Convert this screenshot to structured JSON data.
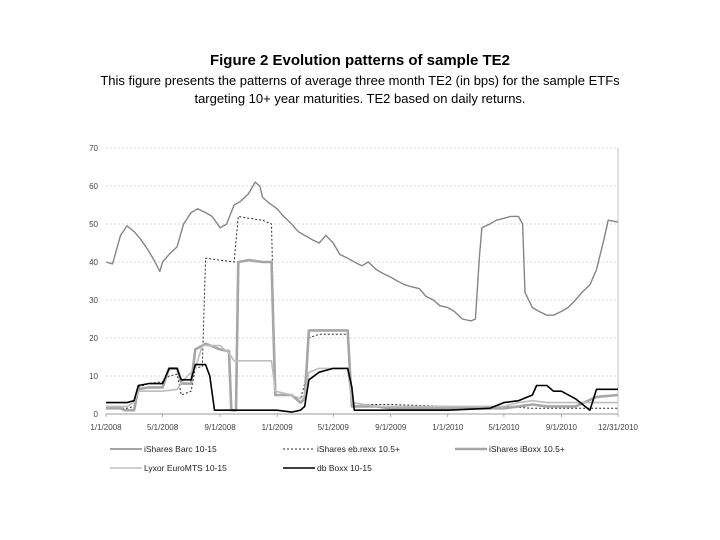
{
  "title": "Figure 2 Evolution patterns of sample TE2",
  "subtitle_line1": "This figure presents the patterns of average three month TE2 (in bps) for the sample ETFs",
  "subtitle_line2": "targeting 10+ year maturities. TE2 based on daily returns.",
  "colors": {
    "ishares_barc": "#858585",
    "ishares_eb": "#2a2a2a",
    "ishares_iboxx": "#a6a6a6",
    "lyxor": "#bdbdbd",
    "db_boxx": "#000000",
    "grid": "#b5b5b5"
  },
  "chart_data": {
    "type": "line",
    "title": "",
    "xlabel": "",
    "ylabel": "",
    "xlim": [
      "1/1/2008",
      "12/31/2010"
    ],
    "ylim": [
      0,
      70
    ],
    "yticks": [
      0,
      10,
      20,
      30,
      40,
      50,
      60,
      70
    ],
    "ytick_labels": [
      "0",
      "10",
      "20",
      "30",
      "40",
      "50",
      "60",
      "70"
    ],
    "xticks": [
      "1/1/2008",
      "5/1/2008",
      "9/1/2008",
      "1/1/2009",
      "5/1/2009",
      "9/1/2009",
      "1/1/2010",
      "5/1/2010",
      "9/1/2010",
      "12/31/2010"
    ],
    "xtick_labels": [
      "1/1/2008",
      "5/1/2008",
      "9/1/2008",
      "1/1/2009",
      "5/1/2009",
      "9/1/2009",
      "1/1/2010",
      "5/1/2010",
      "9/1/2010",
      "12/31/2010"
    ],
    "grid": "horizontal dashed",
    "legend_position": "bottom",
    "series": [
      {
        "name": "iShares Barc 10-15",
        "style": "solid-thin",
        "points": [
          [
            "1/1/2008",
            40
          ],
          [
            "1/15/2008",
            39.5
          ],
          [
            "2/1/2008",
            47
          ],
          [
            "2/15/2008",
            49.5
          ],
          [
            "3/1/2008",
            48
          ],
          [
            "3/15/2008",
            46
          ],
          [
            "4/1/2008",
            43
          ],
          [
            "4/15/2008",
            40
          ],
          [
            "4/25/2008",
            37.5
          ],
          [
            "5/1/2008",
            40
          ],
          [
            "5/15/2008",
            42
          ],
          [
            "6/1/2008",
            44
          ],
          [
            "6/15/2008",
            50
          ],
          [
            "7/1/2008",
            53
          ],
          [
            "7/15/2008",
            54
          ],
          [
            "8/1/2008",
            53
          ],
          [
            "8/15/2008",
            52
          ],
          [
            "9/1/2008",
            49
          ],
          [
            "9/15/2008",
            50
          ],
          [
            "10/1/2008",
            55
          ],
          [
            "10/15/2008",
            56
          ],
          [
            "11/1/2008",
            58
          ],
          [
            "11/15/2008",
            61
          ],
          [
            "11/25/2008",
            60
          ],
          [
            "12/1/2008",
            57
          ],
          [
            "12/15/2008",
            55.5
          ],
          [
            "1/1/2009",
            54
          ],
          [
            "1/15/2009",
            52
          ],
          [
            "2/1/2009",
            50
          ],
          [
            "2/15/2009",
            48
          ],
          [
            "3/1/2009",
            47
          ],
          [
            "3/15/2009",
            46
          ],
          [
            "4/1/2009",
            45
          ],
          [
            "4/15/2009",
            47
          ],
          [
            "5/1/2009",
            45
          ],
          [
            "5/15/2009",
            42
          ],
          [
            "6/1/2009",
            41
          ],
          [
            "6/15/2009",
            40
          ],
          [
            "7/1/2009",
            39
          ],
          [
            "7/15/2009",
            40
          ],
          [
            "8/1/2009",
            38
          ],
          [
            "8/15/2009",
            37
          ],
          [
            "9/1/2009",
            36
          ],
          [
            "9/15/2009",
            35
          ],
          [
            "10/1/2009",
            34
          ],
          [
            "10/15/2009",
            33.5
          ],
          [
            "11/1/2009",
            33
          ],
          [
            "11/15/2009",
            31
          ],
          [
            "12/1/2009",
            30
          ],
          [
            "12/15/2009",
            28.5
          ],
          [
            "1/1/2010",
            28
          ],
          [
            "1/15/2010",
            27
          ],
          [
            "2/1/2010",
            25
          ],
          [
            "2/20/2010",
            24.5
          ],
          [
            "3/1/2010",
            25
          ],
          [
            "3/10/2010",
            42
          ],
          [
            "3/15/2010",
            49
          ],
          [
            "4/1/2010",
            50
          ],
          [
            "4/15/2010",
            51
          ],
          [
            "5/1/2010",
            51.5
          ],
          [
            "5/15/2010",
            52
          ],
          [
            "6/1/2010",
            52
          ],
          [
            "6/10/2010",
            50
          ],
          [
            "6/15/2010",
            32
          ],
          [
            "7/1/2010",
            28
          ],
          [
            "7/15/2010",
            27
          ],
          [
            "8/1/2010",
            26
          ],
          [
            "8/15/2010",
            26
          ],
          [
            "9/1/2010",
            27
          ],
          [
            "9/15/2010",
            28
          ],
          [
            "10/1/2010",
            30
          ],
          [
            "10/15/2010",
            32
          ],
          [
            "11/1/2010",
            34
          ],
          [
            "11/15/2010",
            38
          ],
          [
            "12/1/2010",
            46
          ],
          [
            "12/10/2010",
            51
          ],
          [
            "12/31/2010",
            50.5
          ]
        ]
      },
      {
        "name": "iShares eb.rexx 10.5+",
        "style": "dotted",
        "points": [
          [
            "1/1/2008",
            1.5
          ],
          [
            "2/15/2008",
            1.5
          ],
          [
            "3/1/2008",
            2
          ],
          [
            "3/10/2008",
            7
          ],
          [
            "4/1/2008",
            8
          ],
          [
            "5/1/2008",
            8.5
          ],
          [
            "5/15/2008",
            10
          ],
          [
            "6/1/2008",
            10.5
          ],
          [
            "6/10/2008",
            5
          ],
          [
            "7/1/2008",
            6
          ],
          [
            "7/10/2008",
            12
          ],
          [
            "7/25/2008",
            12.5
          ],
          [
            "8/1/2008",
            41
          ],
          [
            "9/1/2008",
            40.5
          ],
          [
            "10/1/2008",
            40
          ],
          [
            "10/10/2008",
            52
          ],
          [
            "11/1/2008",
            51.5
          ],
          [
            "12/1/2008",
            51
          ],
          [
            "12/20/2008",
            50
          ],
          [
            "12/28/2008",
            6
          ],
          [
            "2/1/2009",
            5
          ],
          [
            "2/20/2009",
            4
          ],
          [
            "3/1/2009",
            8
          ],
          [
            "3/10/2009",
            20
          ],
          [
            "4/1/2009",
            21
          ],
          [
            "6/1/2009",
            21
          ],
          [
            "6/10/2009",
            3
          ],
          [
            "7/1/2009",
            2.5
          ],
          [
            "9/1/2009",
            2.5
          ],
          [
            "1/1/2010",
            2
          ],
          [
            "5/1/2010",
            2
          ],
          [
            "7/1/2010",
            1.5
          ],
          [
            "9/1/2010",
            1.5
          ],
          [
            "12/31/2010",
            1.5
          ]
        ]
      },
      {
        "name": "iShares iBoxx 10.5+",
        "style": "solid-thick",
        "points": [
          [
            "1/1/2008",
            1.5
          ],
          [
            "2/1/2008",
            1.5
          ],
          [
            "2/10/2008",
            1
          ],
          [
            "3/1/2008",
            1
          ],
          [
            "3/10/2008",
            6.5
          ],
          [
            "4/1/2008",
            7
          ],
          [
            "5/1/2008",
            7
          ],
          [
            "5/15/2008",
            12
          ],
          [
            "6/1/2008",
            12
          ],
          [
            "6/10/2008",
            8
          ],
          [
            "7/1/2008",
            8
          ],
          [
            "7/10/2008",
            17
          ],
          [
            "8/1/2008",
            18.5
          ],
          [
            "9/1/2008",
            17
          ],
          [
            "9/20/2008",
            16.5
          ],
          [
            "9/25/2008",
            1
          ],
          [
            "10/5/2008",
            1
          ],
          [
            "10/10/2008",
            40
          ],
          [
            "11/1/2008",
            40.5
          ],
          [
            "12/1/2008",
            40
          ],
          [
            "12/20/2008",
            40
          ],
          [
            "12/28/2008",
            5
          ],
          [
            "2/1/2009",
            5
          ],
          [
            "2/20/2009",
            3
          ],
          [
            "3/1/2009",
            4
          ],
          [
            "3/10/2009",
            22
          ],
          [
            "5/1/2009",
            22
          ],
          [
            "6/1/2009",
            22
          ],
          [
            "6/10/2009",
            2
          ],
          [
            "8/1/2009",
            2
          ],
          [
            "9/1/2009",
            1.5
          ],
          [
            "1/1/2010",
            1.5
          ],
          [
            "5/1/2010",
            1.5
          ],
          [
            "6/1/2010",
            2
          ],
          [
            "7/1/2010",
            2.5
          ],
          [
            "8/1/2010",
            2
          ],
          [
            "10/1/2010",
            2
          ],
          [
            "11/15/2010",
            4.5
          ],
          [
            "12/31/2010",
            5
          ]
        ]
      },
      {
        "name": "Lyxor EuroMTS 10-15",
        "style": "solid-medium",
        "points": [
          [
            "1/1/2008",
            2
          ],
          [
            "2/15/2008",
            2
          ],
          [
            "3/1/2008",
            3
          ],
          [
            "3/10/2008",
            6
          ],
          [
            "5/1/2008",
            6
          ],
          [
            "6/1/2008",
            6.5
          ],
          [
            "6/15/2008",
            9
          ],
          [
            "7/10/2008",
            12
          ],
          [
            "7/25/2008",
            18
          ],
          [
            "9/1/2008",
            18
          ],
          [
            "9/20/2008",
            16
          ],
          [
            "10/1/2008",
            14
          ],
          [
            "11/1/2008",
            14
          ],
          [
            "12/1/2008",
            14
          ],
          [
            "12/20/2008",
            14
          ],
          [
            "12/28/2008",
            6
          ],
          [
            "2/1/2009",
            5
          ],
          [
            "2/20/2009",
            4
          ],
          [
            "3/1/2009",
            5
          ],
          [
            "3/10/2009",
            11
          ],
          [
            "4/1/2009",
            12
          ],
          [
            "6/1/2009",
            12
          ],
          [
            "6/10/2009",
            3
          ],
          [
            "8/1/2009",
            2
          ],
          [
            "9/1/2009",
            2
          ],
          [
            "1/1/2010",
            2
          ],
          [
            "5/1/2010",
            2
          ],
          [
            "6/1/2010",
            3
          ],
          [
            "7/1/2010",
            3.5
          ],
          [
            "8/1/2010",
            3
          ],
          [
            "10/1/2010",
            3
          ],
          [
            "11/1/2010",
            3
          ],
          [
            "12/31/2010",
            3
          ]
        ]
      },
      {
        "name": "db  Boxx 10-15",
        "style": "solid-black",
        "points": [
          [
            "1/1/2008",
            3
          ],
          [
            "2/15/2008",
            3
          ],
          [
            "3/1/2008",
            3.5
          ],
          [
            "3/10/2008",
            7.5
          ],
          [
            "4/1/2008",
            8
          ],
          [
            "5/1/2008",
            8
          ],
          [
            "5/15/2008",
            12
          ],
          [
            "6/1/2008",
            12
          ],
          [
            "6/10/2008",
            9
          ],
          [
            "7/1/2008",
            9
          ],
          [
            "7/10/2008",
            13
          ],
          [
            "8/1/2008",
            13
          ],
          [
            "8/10/2008",
            10
          ],
          [
            "8/20/2008",
            1
          ],
          [
            "9/1/2008",
            1
          ],
          [
            "12/31/2008",
            1
          ],
          [
            "2/1/2009",
            0.5
          ],
          [
            "2/20/2009",
            1
          ],
          [
            "3/1/2009",
            2
          ],
          [
            "3/10/2009",
            9
          ],
          [
            "4/1/2009",
            11
          ],
          [
            "5/1/2009",
            12
          ],
          [
            "6/1/2009",
            12
          ],
          [
            "6/10/2009",
            7
          ],
          [
            "6/15/2009",
            1
          ],
          [
            "9/1/2009",
            1
          ],
          [
            "1/1/2010",
            1
          ],
          [
            "4/1/2010",
            1.5
          ],
          [
            "5/1/2010",
            3
          ],
          [
            "6/1/2010",
            3.5
          ],
          [
            "7/1/2010",
            5
          ],
          [
            "7/10/2010",
            7.5
          ],
          [
            "8/1/2010",
            7.5
          ],
          [
            "8/15/2010",
            6
          ],
          [
            "9/1/2010",
            6
          ],
          [
            "10/1/2010",
            4
          ],
          [
            "11/1/2010",
            1
          ],
          [
            "11/15/2010",
            6.5
          ],
          [
            "12/31/2010",
            6.5
          ]
        ]
      }
    ]
  },
  "legend": [
    {
      "label": "iShares Barc 10-15",
      "series": 0
    },
    {
      "label": "iShares eb.rexx 10.5+",
      "series": 1
    },
    {
      "label": "iShares iBoxx 10.5+",
      "series": 2
    },
    {
      "label": "Lyxor EuroMTS 10-15",
      "series": 3
    },
    {
      "label": "db  Boxx 10-15",
      "series": 4
    }
  ]
}
